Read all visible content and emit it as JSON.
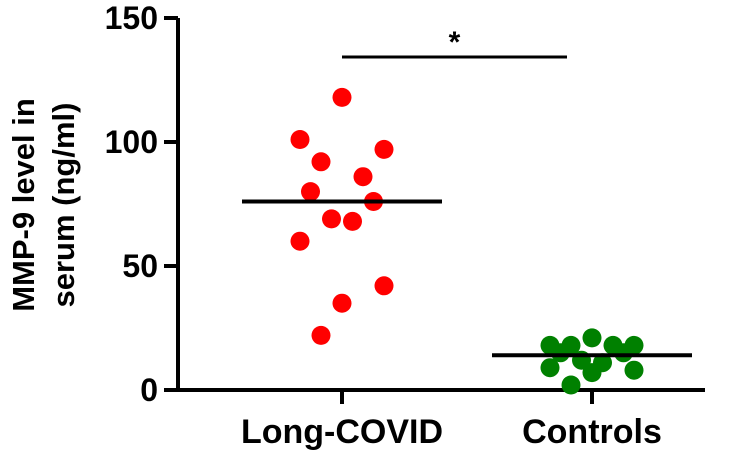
{
  "chart_data": {
    "type": "scatter",
    "title": "",
    "xlabel": "",
    "ylabel": [
      "MMP-9 level in",
      "serum (ng/ml)"
    ],
    "ylim": [
      0,
      150
    ],
    "yticks": [
      0,
      50,
      100,
      150
    ],
    "categories": [
      "Long-COVID",
      "Controls"
    ],
    "grid": false,
    "series": [
      {
        "category": "Long-COVID",
        "color": "#ff0000",
        "median": 76,
        "values": [
          118,
          101,
          97,
          92,
          86,
          80,
          76,
          69,
          68,
          60,
          42,
          35,
          22
        ]
      },
      {
        "category": "Controls",
        "color": "#008000",
        "median": 14,
        "values": [
          21,
          18,
          18,
          18,
          18,
          15,
          15,
          12,
          11,
          9,
          8,
          7,
          2
        ]
      }
    ],
    "significance": {
      "label": "*",
      "between": [
        "Long-COVID",
        "Controls"
      ]
    }
  }
}
